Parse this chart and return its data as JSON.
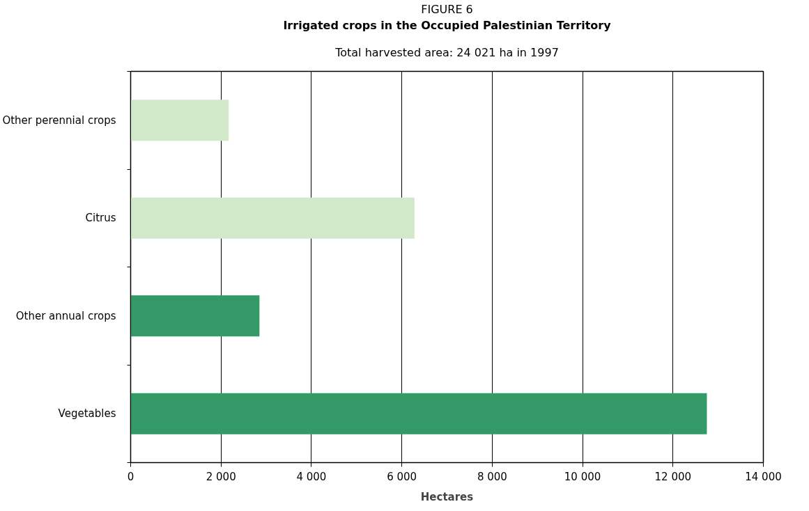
{
  "chart_data": {
    "type": "bar",
    "orientation": "horizontal",
    "annotations": [
      "FIGURE 6"
    ],
    "title": "Irrigated crops in the Occupied Palestinian Territory",
    "subtitle": "Total harvested area: 24 021 ha in 1997",
    "xlabel": "Hectares",
    "categories": [
      "Other perennial crops",
      "Citrus",
      "Other annual crops",
      "Vegetables"
    ],
    "values": [
      2170,
      6280,
      2850,
      12750
    ],
    "colors": [
      "#d1e8c9",
      "#d1e8c9",
      "#339966",
      "#339966"
    ],
    "xlim": [
      0,
      14000
    ],
    "xticks": [
      {
        "value": 0,
        "label": "0"
      },
      {
        "value": 2000,
        "label": "2 000"
      },
      {
        "value": 4000,
        "label": "4 000"
      },
      {
        "value": 6000,
        "label": "6 000"
      },
      {
        "value": 8000,
        "label": "8 000"
      },
      {
        "value": 10000,
        "label": "10 000"
      },
      {
        "value": 12000,
        "label": "12 000"
      },
      {
        "value": 14000,
        "label": "14 000"
      }
    ],
    "grid": "x"
  }
}
